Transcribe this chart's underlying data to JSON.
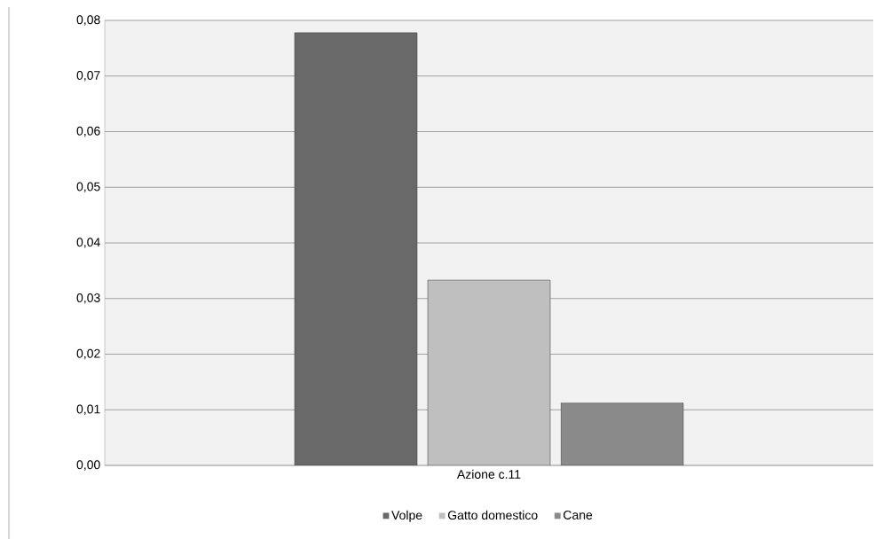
{
  "chart_data": {
    "type": "bar",
    "categories": [
      "Azione c.11"
    ],
    "series": [
      {
        "name": "Volpe",
        "color": "#696969",
        "values": [
          0.0778
        ]
      },
      {
        "name": "Gatto domestico",
        "color": "#bfbfbf",
        "values": [
          0.0333
        ]
      },
      {
        "name": "Cane",
        "color": "#8a8a8a",
        "values": [
          0.0112
        ]
      }
    ],
    "ylim": [
      0,
      0.08
    ],
    "yticks": [
      {
        "value": 0,
        "label": "0,00"
      },
      {
        "value": 0.01,
        "label": "0,01"
      },
      {
        "value": 0.02,
        "label": "0,02"
      },
      {
        "value": 0.03,
        "label": "0,03"
      },
      {
        "value": 0.04,
        "label": "0,04"
      },
      {
        "value": 0.05,
        "label": "0,05"
      },
      {
        "value": 0.06,
        "label": "0,06"
      },
      {
        "value": 0.07,
        "label": "0,07"
      },
      {
        "value": 0.08,
        "label": "0,08"
      }
    ],
    "grid": "y",
    "legend": "bottom"
  }
}
